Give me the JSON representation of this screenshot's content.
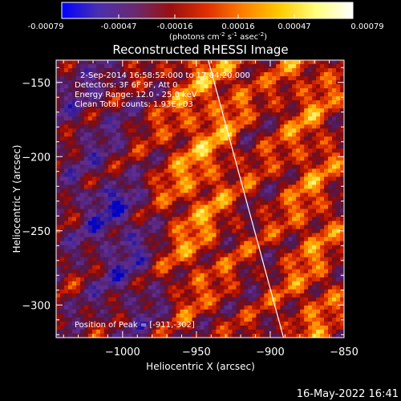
{
  "colorbar": {
    "tick_labels": [
      "-0.00079",
      "-0.00047",
      "-0.00016",
      "0.00016",
      "0.00047",
      "0.00079"
    ],
    "range": [
      -0.00079,
      0.00079
    ],
    "units_main": "(photons cm",
    "units_sup1": "-2",
    "units_mid1": " s",
    "units_sup2": "-1",
    "units_mid2": " asec",
    "units_sup3": "-2",
    "units_end": ")",
    "stops": [
      "#0000ff",
      "#4a2fb0",
      "#6a2a70",
      "#9a1010",
      "#e03000",
      "#ff8000",
      "#ffcc00",
      "#ffff80",
      "#ffffff"
    ]
  },
  "chart_data": {
    "type": "heatmap",
    "title": "Reconstructed RHESSI Image",
    "xlabel": "Heliocentric X (arcsec)",
    "ylabel": "Heliocentric Y (arcsec)",
    "xlim": [
      -1045,
      -850
    ],
    "ylim": [
      -322,
      -135
    ],
    "xticks": [
      -1000,
      -950,
      -900,
      -850
    ],
    "xtick_labels": [
      "−1000",
      "−950",
      "−900",
      "−850"
    ],
    "yticks": [
      -150,
      -200,
      -250,
      -300
    ],
    "ytick_labels": [
      "−150",
      "−200",
      "−250",
      "−300"
    ],
    "limb_line": [
      [
        -942,
        -135
      ],
      [
        -891,
        -322
      ]
    ],
    "peak_position": [
      -911,
      -302
    ],
    "annotations": {
      "time": "2-Sep-2014 16:58:52.000 to 17:04:20.000",
      "detectors": "Detectors: 3F 6F 9F, Att 0",
      "energy": "Energy Range: 12.0 - 25.0 keV",
      "method": "Clean     Total counts: 1.93E+03",
      "peak": "Position of Peak = [-911,-302]"
    }
  },
  "footer": {
    "timestamp": "16-May-2022 16:41"
  }
}
